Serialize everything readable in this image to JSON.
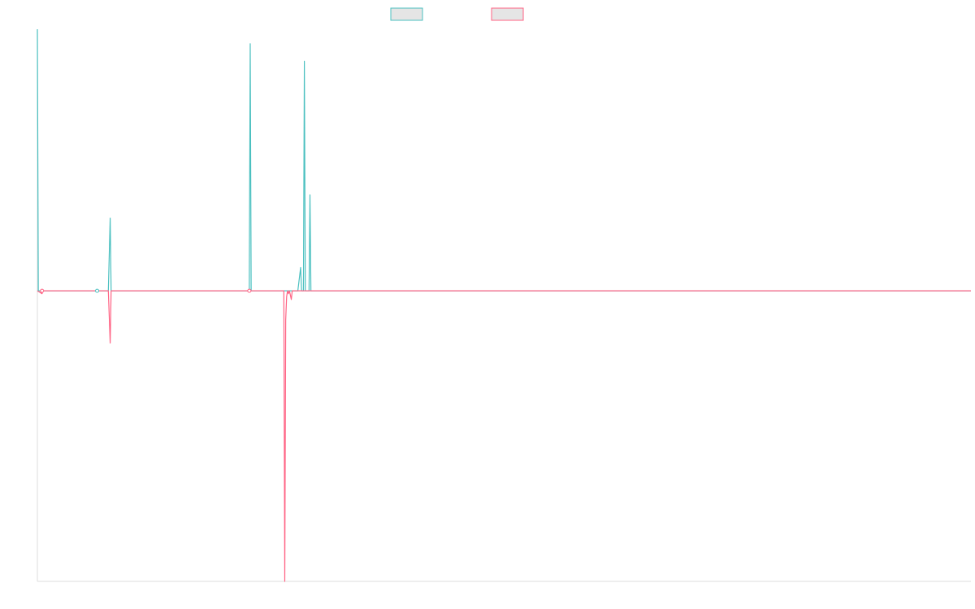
{
  "colors": {
    "series_a": "#4bc0c0",
    "series_b": "#ff6384",
    "legend_fill": "#e5e5e5",
    "axis": "#dddddd"
  },
  "chart_data": {
    "type": "line",
    "title": "",
    "xlabel": "",
    "ylabel": "",
    "grid": false,
    "legend_position": "top",
    "xlim": [
      0,
      1000
    ],
    "ylim": [
      -100,
      90
    ],
    "series": [
      {
        "color": "#4bc0c0",
        "points": [
          [
            0,
            90
          ],
          [
            1,
            0
          ],
          [
            5,
            0
          ],
          [
            64,
            0
          ],
          [
            75,
            0
          ],
          [
            76,
            0
          ],
          [
            78,
            25
          ],
          [
            79,
            0
          ],
          [
            225,
            0
          ],
          [
            226,
            0
          ],
          [
            227,
            0
          ],
          [
            228,
            85
          ],
          [
            229,
            0
          ],
          [
            270,
            0
          ],
          [
            279,
            0
          ],
          [
            282,
            8
          ],
          [
            283,
            0
          ],
          [
            285,
            0
          ],
          [
            286,
            79
          ],
          [
            287,
            0
          ],
          [
            288,
            0
          ],
          [
            291,
            0
          ],
          [
            292,
            33
          ],
          [
            293,
            0
          ],
          [
            1000,
            0
          ]
        ]
      },
      {
        "color": "#ff6384",
        "points": [
          [
            0,
            0
          ],
          [
            5,
            -1
          ],
          [
            6,
            0
          ],
          [
            64,
            0
          ],
          [
            76,
            0
          ],
          [
            78,
            -18
          ],
          [
            79,
            0
          ],
          [
            228,
            0
          ],
          [
            264,
            0
          ],
          [
            265,
            -100
          ],
          [
            266,
            -10
          ],
          [
            267,
            -2
          ],
          [
            268,
            0
          ],
          [
            269,
            -1
          ],
          [
            270,
            0
          ],
          [
            272,
            -3
          ],
          [
            273,
            0
          ],
          [
            1000,
            0
          ]
        ]
      }
    ],
    "markers": [
      {
        "series": 1,
        "x": 5,
        "y": 0
      },
      {
        "series": 0,
        "x": 64,
        "y": 0
      },
      {
        "series": 1,
        "x": 227,
        "y": 0
      }
    ]
  }
}
